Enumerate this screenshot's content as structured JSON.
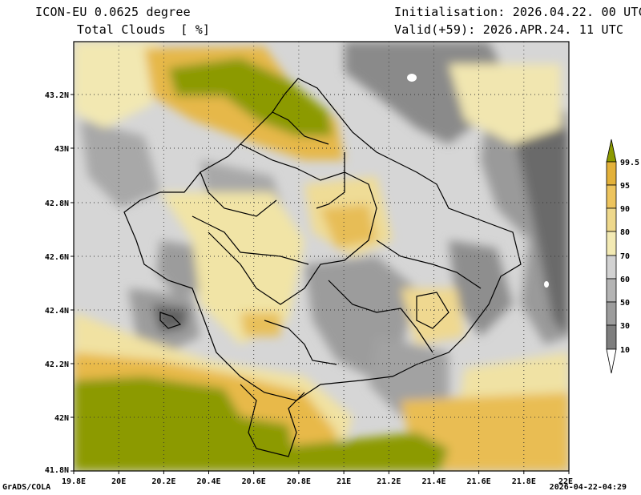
{
  "header": {
    "model_line": "ICON-EU 0.0625 degree",
    "field_line": "Total Clouds  [ %]",
    "init_line": "Initialisation: 2026.04.22. 00 UTC",
    "valid_line": "Valid(+59): 2026.APR.24. 11 UTC"
  },
  "footer": {
    "credit": "GrADS/COLA",
    "timestamp": "2026-04-22-04:29"
  },
  "map": {
    "lon_ticks": [
      "19.8E",
      "20E",
      "20.2E",
      "20.4E",
      "20.6E",
      "20.8E",
      "21E",
      "21.2E",
      "21.4E",
      "21.6E",
      "21.8E",
      "22E"
    ],
    "lat_ticks": [
      "43.2N",
      "43N",
      "42.8N",
      "42.6N",
      "42.4N",
      "42.2N",
      "42N",
      "41.8N"
    ]
  },
  "colorbar": {
    "labels": [
      "99.5",
      "95",
      "90",
      "80",
      "70",
      "60",
      "50",
      "30",
      "10"
    ],
    "colors": [
      "#8c9a00",
      "#e3b13a",
      "#edc45e",
      "#eed88c",
      "#f3eab4",
      "#d2d2d2",
      "#b4b4b4",
      "#9c9c9c",
      "#7e7e7e",
      "#5e5e5e",
      "#ffffff"
    ]
  }
}
